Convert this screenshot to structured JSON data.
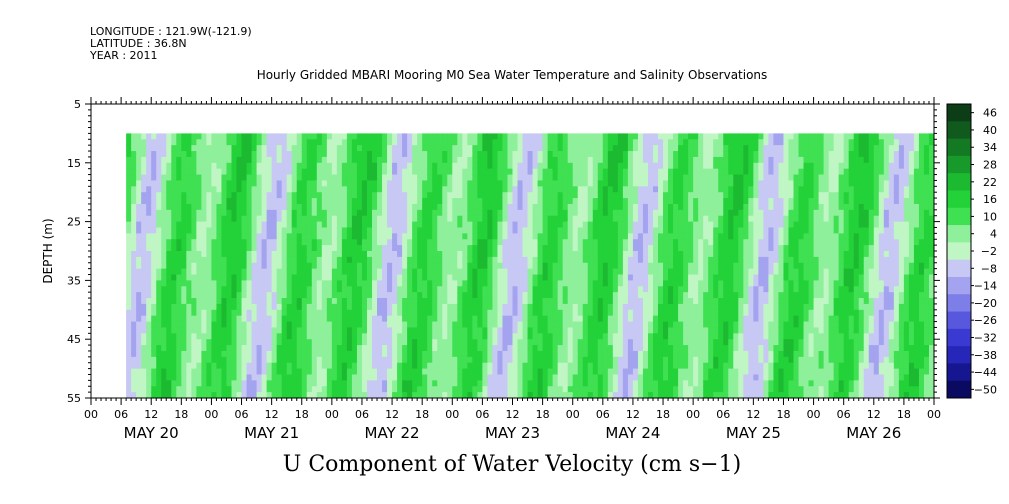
{
  "meta": {
    "longitude": "LONGITUDE : 121.9W(-121.9)",
    "latitude": "LATITUDE : 36.8N",
    "year": "YEAR : 2011"
  },
  "chart_data": {
    "type": "heatmap",
    "title": "Hourly Gridded MBARI Mooring M0 Sea Water Temperature and Salinity Observations",
    "variable_label": "U Component of Water Velocity (cm s−1)",
    "ylabel": "DEPTH (m)",
    "y_ticks": [
      5,
      15,
      25,
      35,
      45,
      55
    ],
    "ylim": [
      5,
      55
    ],
    "y_inverted": true,
    "x_hour_ticks": [
      "00",
      "06",
      "12",
      "18",
      "00",
      "06",
      "12",
      "18",
      "00",
      "06",
      "12",
      "18",
      "00",
      "06",
      "12",
      "18",
      "00",
      "06",
      "12",
      "18",
      "00",
      "06",
      "12",
      "18",
      "00",
      "06",
      "12",
      "18",
      "00"
    ],
    "x_day_labels": [
      "MAY 20",
      "MAY 21",
      "MAY 22",
      "MAY 23",
      "MAY 24",
      "MAY 25",
      "MAY 26"
    ],
    "data_time_range_hours": [
      7,
      168
    ],
    "data_depth_range": [
      10,
      55
    ],
    "colorbar": {
      "levels": [
        46,
        40,
        34,
        28,
        22,
        16,
        10,
        4,
        -2,
        -8,
        -14,
        -20,
        -26,
        -32,
        -38,
        -44,
        -50
      ],
      "labels": [
        "46",
        "40",
        "34",
        "28",
        "22",
        "16",
        "10",
        "4",
        "−2",
        "−8",
        "−14",
        "−20",
        "−26",
        "−32",
        "−38",
        "−44",
        "−50"
      ],
      "colors_high_to_low": [
        "#0c3d16",
        "#0f5a1c",
        "#137a23",
        "#179a2a",
        "#1cba31",
        "#22d238",
        "#3fe052",
        "#8ef09a",
        "#c0f6c4",
        "#c8c8f4",
        "#a3a3ef",
        "#7e7ee8",
        "#5858df",
        "#3a3ad3",
        "#2626b8",
        "#161690",
        "#0a0a60"
      ]
    }
  }
}
